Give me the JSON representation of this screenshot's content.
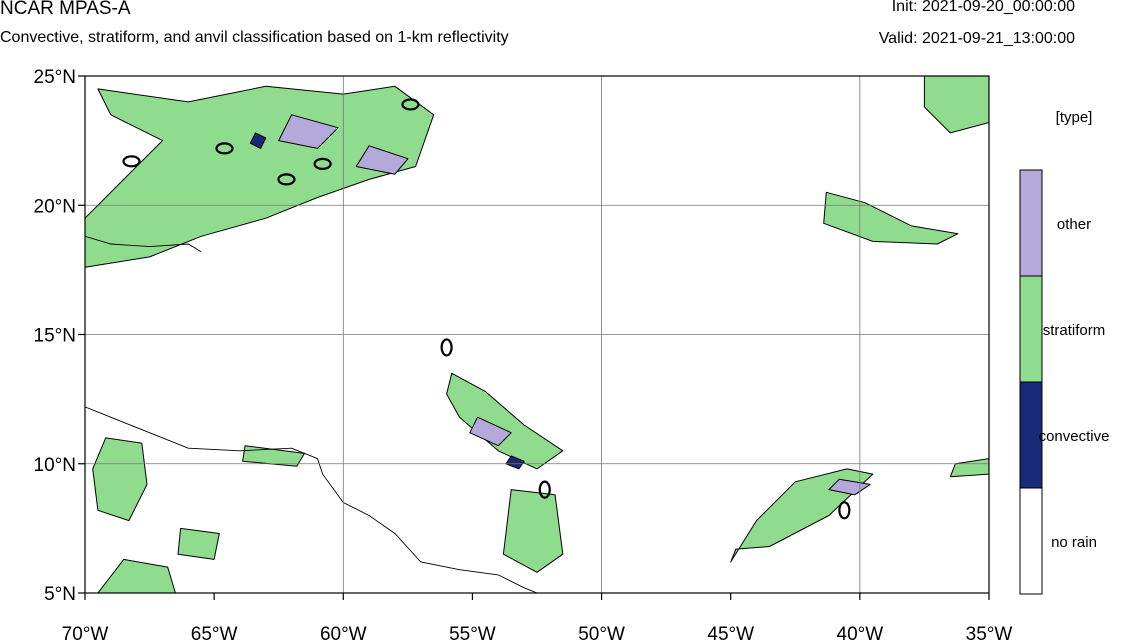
{
  "header": {
    "model": "NCAR MPAS-A",
    "subtitle": "Convective, stratiform, and anvil classification based on 1-km reflectivity",
    "init": "Init: 2021-09-20_00:00:00",
    "valid": "Valid: 2021-09-21_13:00:00"
  },
  "map": {
    "lon_range": [
      -70,
      -35
    ],
    "lat_range": [
      5,
      25
    ],
    "x_ticks": [
      {
        "lon": -70,
        "label": "70°W"
      },
      {
        "lon": -65,
        "label": "65°W"
      },
      {
        "lon": -60,
        "label": "60°W"
      },
      {
        "lon": -55,
        "label": "55°W"
      },
      {
        "lon": -50,
        "label": "50°W"
      },
      {
        "lon": -45,
        "label": "45°W"
      },
      {
        "lon": -40,
        "label": "40°W"
      },
      {
        "lon": -35,
        "label": "35°W"
      }
    ],
    "y_ticks": [
      {
        "lat": 25,
        "label": "25°N"
      },
      {
        "lat": 20,
        "label": "20°N"
      },
      {
        "lat": 15,
        "label": "15°N"
      },
      {
        "lat": 10,
        "label": "10°N"
      },
      {
        "lat": 5,
        "label": "5°N"
      }
    ],
    "grid_lons": [
      -60,
      -50,
      -40
    ],
    "grid_lats": [
      20,
      15,
      10
    ],
    "colors": {
      "stratiform": "#8fdc8f",
      "other": "#b4a9da",
      "convective": "#1a2a7a",
      "no_rain": "#ffffff"
    },
    "rain_regions": [
      {
        "type": "stratiform",
        "points": [
          [
            -69.5,
            24.5
          ],
          [
            -66,
            24
          ],
          [
            -63,
            24.6
          ],
          [
            -60,
            24.3
          ],
          [
            -58,
            24.6
          ],
          [
            -56.5,
            23.5
          ],
          [
            -57.2,
            21.5
          ],
          [
            -59,
            21
          ],
          [
            -61,
            20.3
          ],
          [
            -63,
            19.5
          ],
          [
            -65.5,
            18.8
          ],
          [
            -67.5,
            18
          ],
          [
            -70,
            17.6
          ],
          [
            -70,
            19.5
          ],
          [
            -68.5,
            21
          ],
          [
            -67,
            22.5
          ],
          [
            -69,
            23.5
          ]
        ]
      },
      {
        "type": "stratiform",
        "points": [
          [
            -69.2,
            11
          ],
          [
            -67.8,
            10.8
          ],
          [
            -67.6,
            9.2
          ],
          [
            -68.3,
            7.8
          ],
          [
            -69.5,
            8.2
          ],
          [
            -69.7,
            9.8
          ]
        ]
      },
      {
        "type": "stratiform",
        "points": [
          [
            -68.5,
            6.3
          ],
          [
            -66.8,
            6
          ],
          [
            -66.5,
            5
          ],
          [
            -69.5,
            5
          ]
        ]
      },
      {
        "type": "stratiform",
        "points": [
          [
            -66.3,
            7.5
          ],
          [
            -64.8,
            7.3
          ],
          [
            -65,
            6.3
          ],
          [
            -66.4,
            6.5
          ]
        ]
      },
      {
        "type": "stratiform",
        "points": [
          [
            -63.8,
            10.7
          ],
          [
            -61.5,
            10.4
          ],
          [
            -61.8,
            9.9
          ],
          [
            -63.9,
            10.1
          ]
        ]
      },
      {
        "type": "stratiform",
        "points": [
          [
            -55.8,
            13.5
          ],
          [
            -54.5,
            12.8
          ],
          [
            -53,
            11.5
          ],
          [
            -51.5,
            10.5
          ],
          [
            -52.5,
            9.8
          ],
          [
            -54,
            10.5
          ],
          [
            -55.5,
            11.8
          ],
          [
            -56,
            12.7
          ]
        ]
      },
      {
        "type": "stratiform",
        "points": [
          [
            -53.5,
            9
          ],
          [
            -51.8,
            8.8
          ],
          [
            -51.5,
            6.5
          ],
          [
            -52.5,
            5.8
          ],
          [
            -53.8,
            6.5
          ]
        ]
      },
      {
        "type": "stratiform",
        "points": [
          [
            -44.8,
            6.7
          ],
          [
            -43.5,
            6.8
          ],
          [
            -41.2,
            8
          ],
          [
            -39.5,
            9.6
          ],
          [
            -40.5,
            9.8
          ],
          [
            -42.5,
            9.3
          ],
          [
            -44,
            7.8
          ],
          [
            -45,
            6.2
          ]
        ]
      },
      {
        "type": "stratiform",
        "points": [
          [
            -37.5,
            25
          ],
          [
            -35,
            25
          ],
          [
            -35,
            23.2
          ],
          [
            -36.5,
            22.8
          ],
          [
            -37.5,
            23.8
          ]
        ]
      },
      {
        "type": "stratiform",
        "points": [
          [
            -41.3,
            20.5
          ],
          [
            -39.8,
            20.1
          ],
          [
            -38,
            19.2
          ],
          [
            -36.2,
            18.9
          ],
          [
            -37,
            18.5
          ],
          [
            -39.5,
            18.6
          ],
          [
            -41.4,
            19.3
          ]
        ]
      },
      {
        "type": "stratiform",
        "points": [
          [
            -36.3,
            10
          ],
          [
            -35,
            10.2
          ],
          [
            -35,
            9.6
          ],
          [
            -36.5,
            9.5
          ]
        ]
      },
      {
        "type": "other",
        "points": [
          [
            -62,
            23.5
          ],
          [
            -60.2,
            23
          ],
          [
            -61,
            22.2
          ],
          [
            -62.5,
            22.5
          ]
        ]
      },
      {
        "type": "other",
        "points": [
          [
            -59,
            22.3
          ],
          [
            -57.5,
            21.8
          ],
          [
            -58,
            21.2
          ],
          [
            -59.5,
            21.5
          ]
        ]
      },
      {
        "type": "other",
        "points": [
          [
            -54.8,
            11.8
          ],
          [
            -53.5,
            11.2
          ],
          [
            -54,
            10.7
          ],
          [
            -55.1,
            11.2
          ]
        ]
      },
      {
        "type": "other",
        "points": [
          [
            -40.8,
            9.4
          ],
          [
            -39.6,
            9.2
          ],
          [
            -40.2,
            8.8
          ],
          [
            -41.2,
            9.0
          ]
        ]
      },
      {
        "type": "convective",
        "points": [
          [
            -63.4,
            22.8
          ],
          [
            -63,
            22.6
          ],
          [
            -63.2,
            22.2
          ],
          [
            -63.6,
            22.4
          ]
        ]
      },
      {
        "type": "convective",
        "points": [
          [
            -53.5,
            10.3
          ],
          [
            -53,
            10.1
          ],
          [
            -53.2,
            9.8
          ],
          [
            -53.7,
            10
          ]
        ]
      }
    ],
    "coastlines": [
      [
        [
          -70,
          12.2
        ],
        [
          -69,
          11.8
        ],
        [
          -68,
          11.4
        ],
        [
          -66,
          10.6
        ],
        [
          -64,
          10.5
        ],
        [
          -62,
          10.6
        ],
        [
          -61,
          10.2
        ],
        [
          -60.8,
          9.6
        ],
        [
          -60,
          8.5
        ],
        [
          -59,
          8
        ],
        [
          -58,
          7.3
        ],
        [
          -57,
          6.2
        ],
        [
          -55.5,
          5.9
        ],
        [
          -54,
          5.7
        ],
        [
          -53,
          5.2
        ],
        [
          -52,
          4.8
        ]
      ],
      [
        [
          -70,
          18.8
        ],
        [
          -69,
          18.5
        ],
        [
          -67.5,
          18.4
        ],
        [
          -66,
          18.5
        ],
        [
          -65.5,
          18.2
        ]
      ]
    ],
    "ovals": [
      {
        "lon": -68.2,
        "lat": 21.7,
        "rx": 8,
        "ry": 5
      },
      {
        "lon": -64.6,
        "lat": 22.2,
        "rx": 8,
        "ry": 5
      },
      {
        "lon": -62.2,
        "lat": 21.0,
        "rx": 8,
        "ry": 5
      },
      {
        "lon": -60.8,
        "lat": 21.6,
        "rx": 8,
        "ry": 5
      },
      {
        "lon": -57.4,
        "lat": 23.9,
        "rx": 8,
        "ry": 5
      },
      {
        "lon": -56.0,
        "lat": 14.5,
        "rx": 5,
        "ry": 8
      },
      {
        "lon": -52.2,
        "lat": 9.0,
        "rx": 5,
        "ry": 8
      },
      {
        "lon": -40.6,
        "lat": 8.2,
        "rx": 5,
        "ry": 8
      }
    ]
  },
  "legend": {
    "title": "[type]",
    "items": [
      {
        "label": "other",
        "color": "#b4a9da"
      },
      {
        "label": "stratiform",
        "color": "#8fdc8f"
      },
      {
        "label": "convective",
        "color": "#1a2a7a"
      },
      {
        "label": "no rain",
        "color": "#ffffff"
      }
    ]
  }
}
